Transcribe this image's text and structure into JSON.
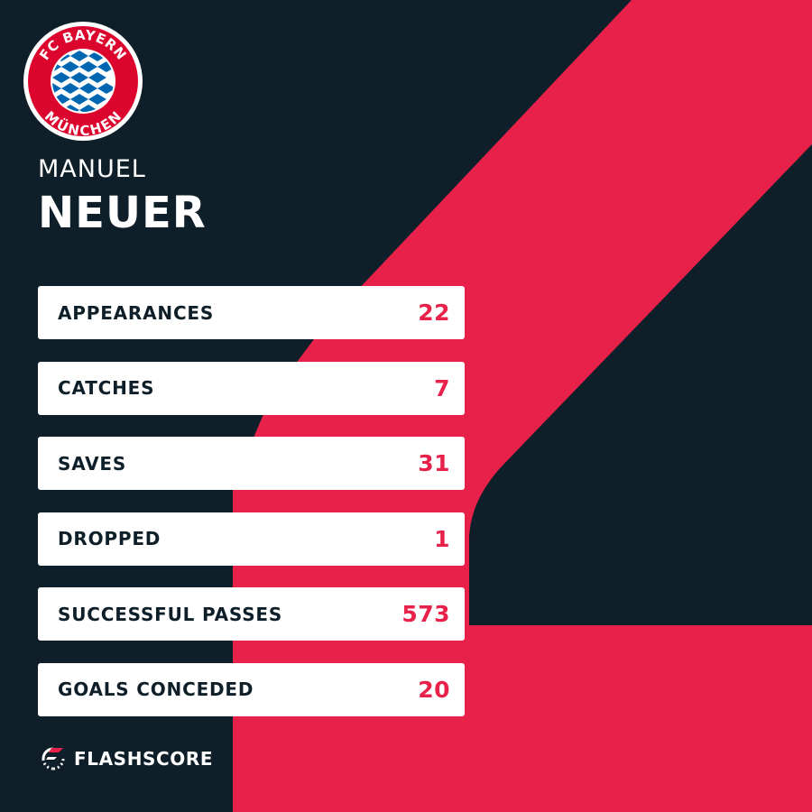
{
  "colors": {
    "background": "#0e1f29",
    "accent": "#e8214a",
    "card": "#ffffff",
    "text_dark": "#0e1f29"
  },
  "club": {
    "logo_text_top": "FC BAYERN",
    "logo_text_bottom": "MÜNCHEN"
  },
  "player": {
    "first_name": "MANUEL",
    "last_name": "NEUER"
  },
  "stats": [
    {
      "label": "APPEARANCES",
      "value": "22"
    },
    {
      "label": "CATCHES",
      "value": "7"
    },
    {
      "label": "SAVES",
      "value": "31"
    },
    {
      "label": "DROPPED",
      "value": "1"
    },
    {
      "label": "SUCCESSFUL PASSES",
      "value": "573"
    },
    {
      "label": "GOALS CONCEDED",
      "value": "20"
    }
  ],
  "brand": {
    "name": "FLASHSCORE",
    "icon": "flashscore-logo-icon"
  }
}
